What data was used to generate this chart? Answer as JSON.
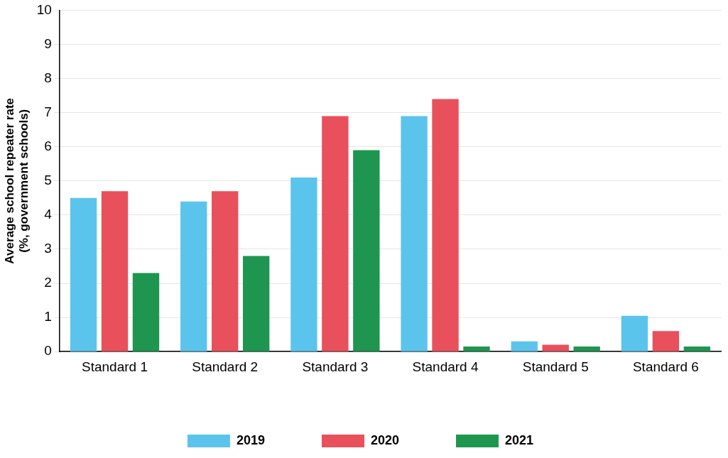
{
  "chart_data": {
    "type": "bar",
    "ylabel": "Average school repeater rate\n(%, government schools)",
    "categories": [
      "Standard 1",
      "Standard 2",
      "Standard 3",
      "Standard 4",
      "Standard 5",
      "Standard 6"
    ],
    "series": [
      {
        "name": "2019",
        "color": "#5bc4ec",
        "values": [
          4.5,
          4.4,
          5.1,
          6.9,
          0.3,
          1.05
        ]
      },
      {
        "name": "2020",
        "color": "#e8505b",
        "values": [
          4.7,
          4.7,
          6.9,
          7.4,
          0.2,
          0.6
        ]
      },
      {
        "name": "2021",
        "color": "#1e9650",
        "values": [
          2.3,
          2.8,
          5.9,
          0.15,
          0.15,
          0.15
        ]
      }
    ],
    "ylim": [
      0,
      10
    ],
    "yticks": [
      0,
      1,
      2,
      3,
      4,
      5,
      6,
      7,
      8,
      9,
      10
    ],
    "grid": "y",
    "legend": "bottom"
  }
}
